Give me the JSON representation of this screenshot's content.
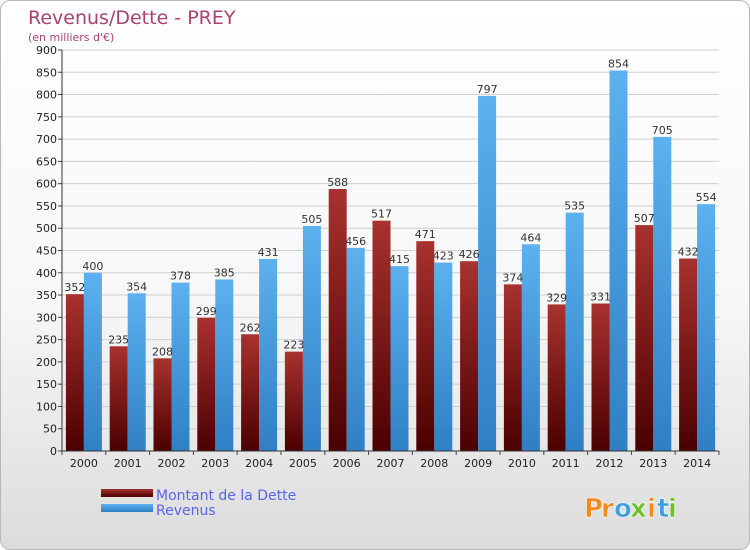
{
  "chart_data": {
    "type": "bar",
    "title": "Revenus/Dette - PREY",
    "subtitle": "(en milliers d'€)",
    "categories": [
      "2000",
      "2001",
      "2002",
      "2003",
      "2004",
      "2005",
      "2006",
      "2007",
      "2008",
      "2009",
      "2010",
      "2011",
      "2012",
      "2013",
      "2014"
    ],
    "series": [
      {
        "name": "Montant de la Dette",
        "color": "#8b1d1d",
        "values": [
          352,
          235,
          208,
          299,
          262,
          223,
          588,
          517,
          471,
          426,
          374,
          329,
          331,
          507,
          432
        ]
      },
      {
        "name": "Revenus",
        "color": "#4da3e6",
        "values": [
          400,
          354,
          378,
          385,
          431,
          505,
          456,
          415,
          423,
          797,
          464,
          535,
          854,
          705,
          554
        ]
      }
    ],
    "ylim": [
      0,
      900
    ],
    "yticks": [
      0,
      50,
      100,
      150,
      200,
      250,
      300,
      350,
      400,
      450,
      500,
      550,
      600,
      650,
      700,
      750,
      800,
      850,
      900
    ],
    "grid": true,
    "legend_position": "bottom-left"
  },
  "logo": {
    "letters": [
      "P",
      "r",
      "o",
      "x",
      "i",
      "t",
      "i"
    ],
    "colors": [
      "#f08a1c",
      "#f08a1c",
      "#3ea0dc",
      "#6fbf2a",
      "#f08a1c",
      "#3ea0dc",
      "#6fbf2a"
    ]
  }
}
